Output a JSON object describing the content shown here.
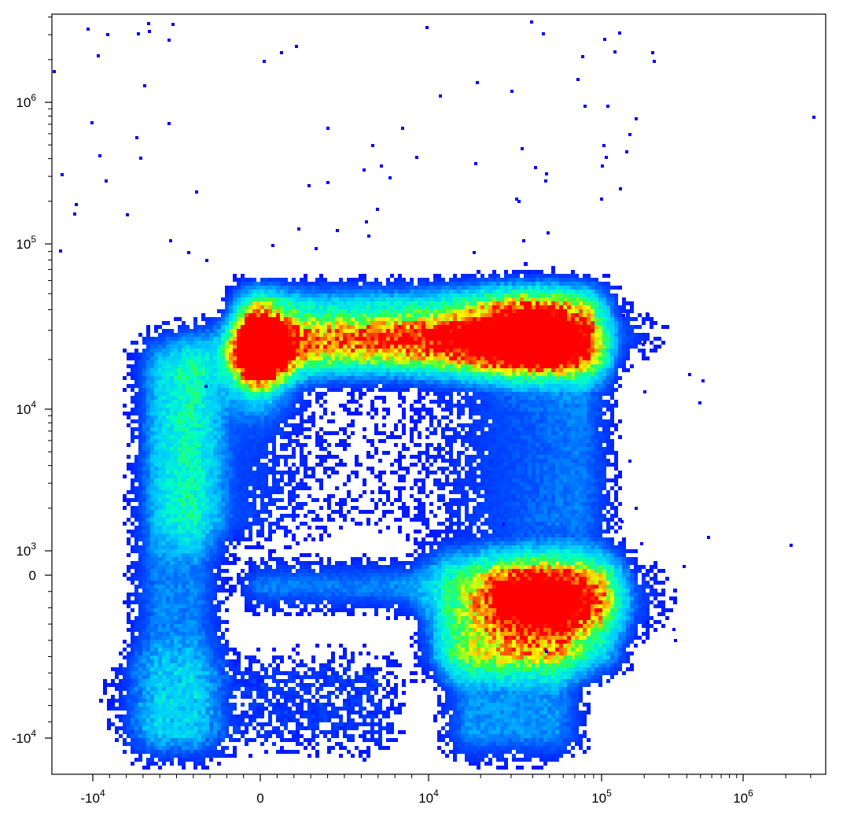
{
  "chart_data": {
    "type": "scatter",
    "subtype": "density-pseudocolor",
    "title": "",
    "xlabel": "",
    "ylabel": "",
    "x_scale": "biexponential",
    "y_scale": "biexponential",
    "xlim": [
      -20000,
      3000000
    ],
    "ylim": [
      -20000,
      4000000
    ],
    "grid": false,
    "colormap": [
      "#0000ff",
      "#00a0ff",
      "#00ffff",
      "#00ff60",
      "#ffff00",
      "#ff8000",
      "#ff0000"
    ],
    "x_ticks": [
      {
        "base": "-10",
        "exp": "4",
        "value": -10000
      },
      {
        "base": "0",
        "exp": "",
        "value": 0
      },
      {
        "base": "10",
        "exp": "4",
        "value": 10000
      },
      {
        "base": "10",
        "exp": "5",
        "value": 100000
      },
      {
        "base": "10",
        "exp": "6",
        "value": 1000000
      }
    ],
    "y_ticks": [
      {
        "base": "-10",
        "exp": "4",
        "value": -10000
      },
      {
        "base": "0",
        "exp": "",
        "value": 0
      },
      {
        "base": "10",
        "exp": "3",
        "value": 1000
      },
      {
        "base": "10",
        "exp": "4",
        "value": 10000
      },
      {
        "base": "10",
        "exp": "5",
        "value": 100000
      },
      {
        "base": "10",
        "exp": "6",
        "value": 1000000
      }
    ],
    "populations": [
      {
        "name": "",
        "x_center": 0,
        "y_center": 22000,
        "peak_density": 1.0
      },
      {
        "name": "",
        "x_center": 40000,
        "y_center": 30000,
        "peak_density": 0.75
      },
      {
        "name": "",
        "x_center": 45000,
        "y_center": -1500,
        "peak_density": 1.0
      }
    ]
  }
}
